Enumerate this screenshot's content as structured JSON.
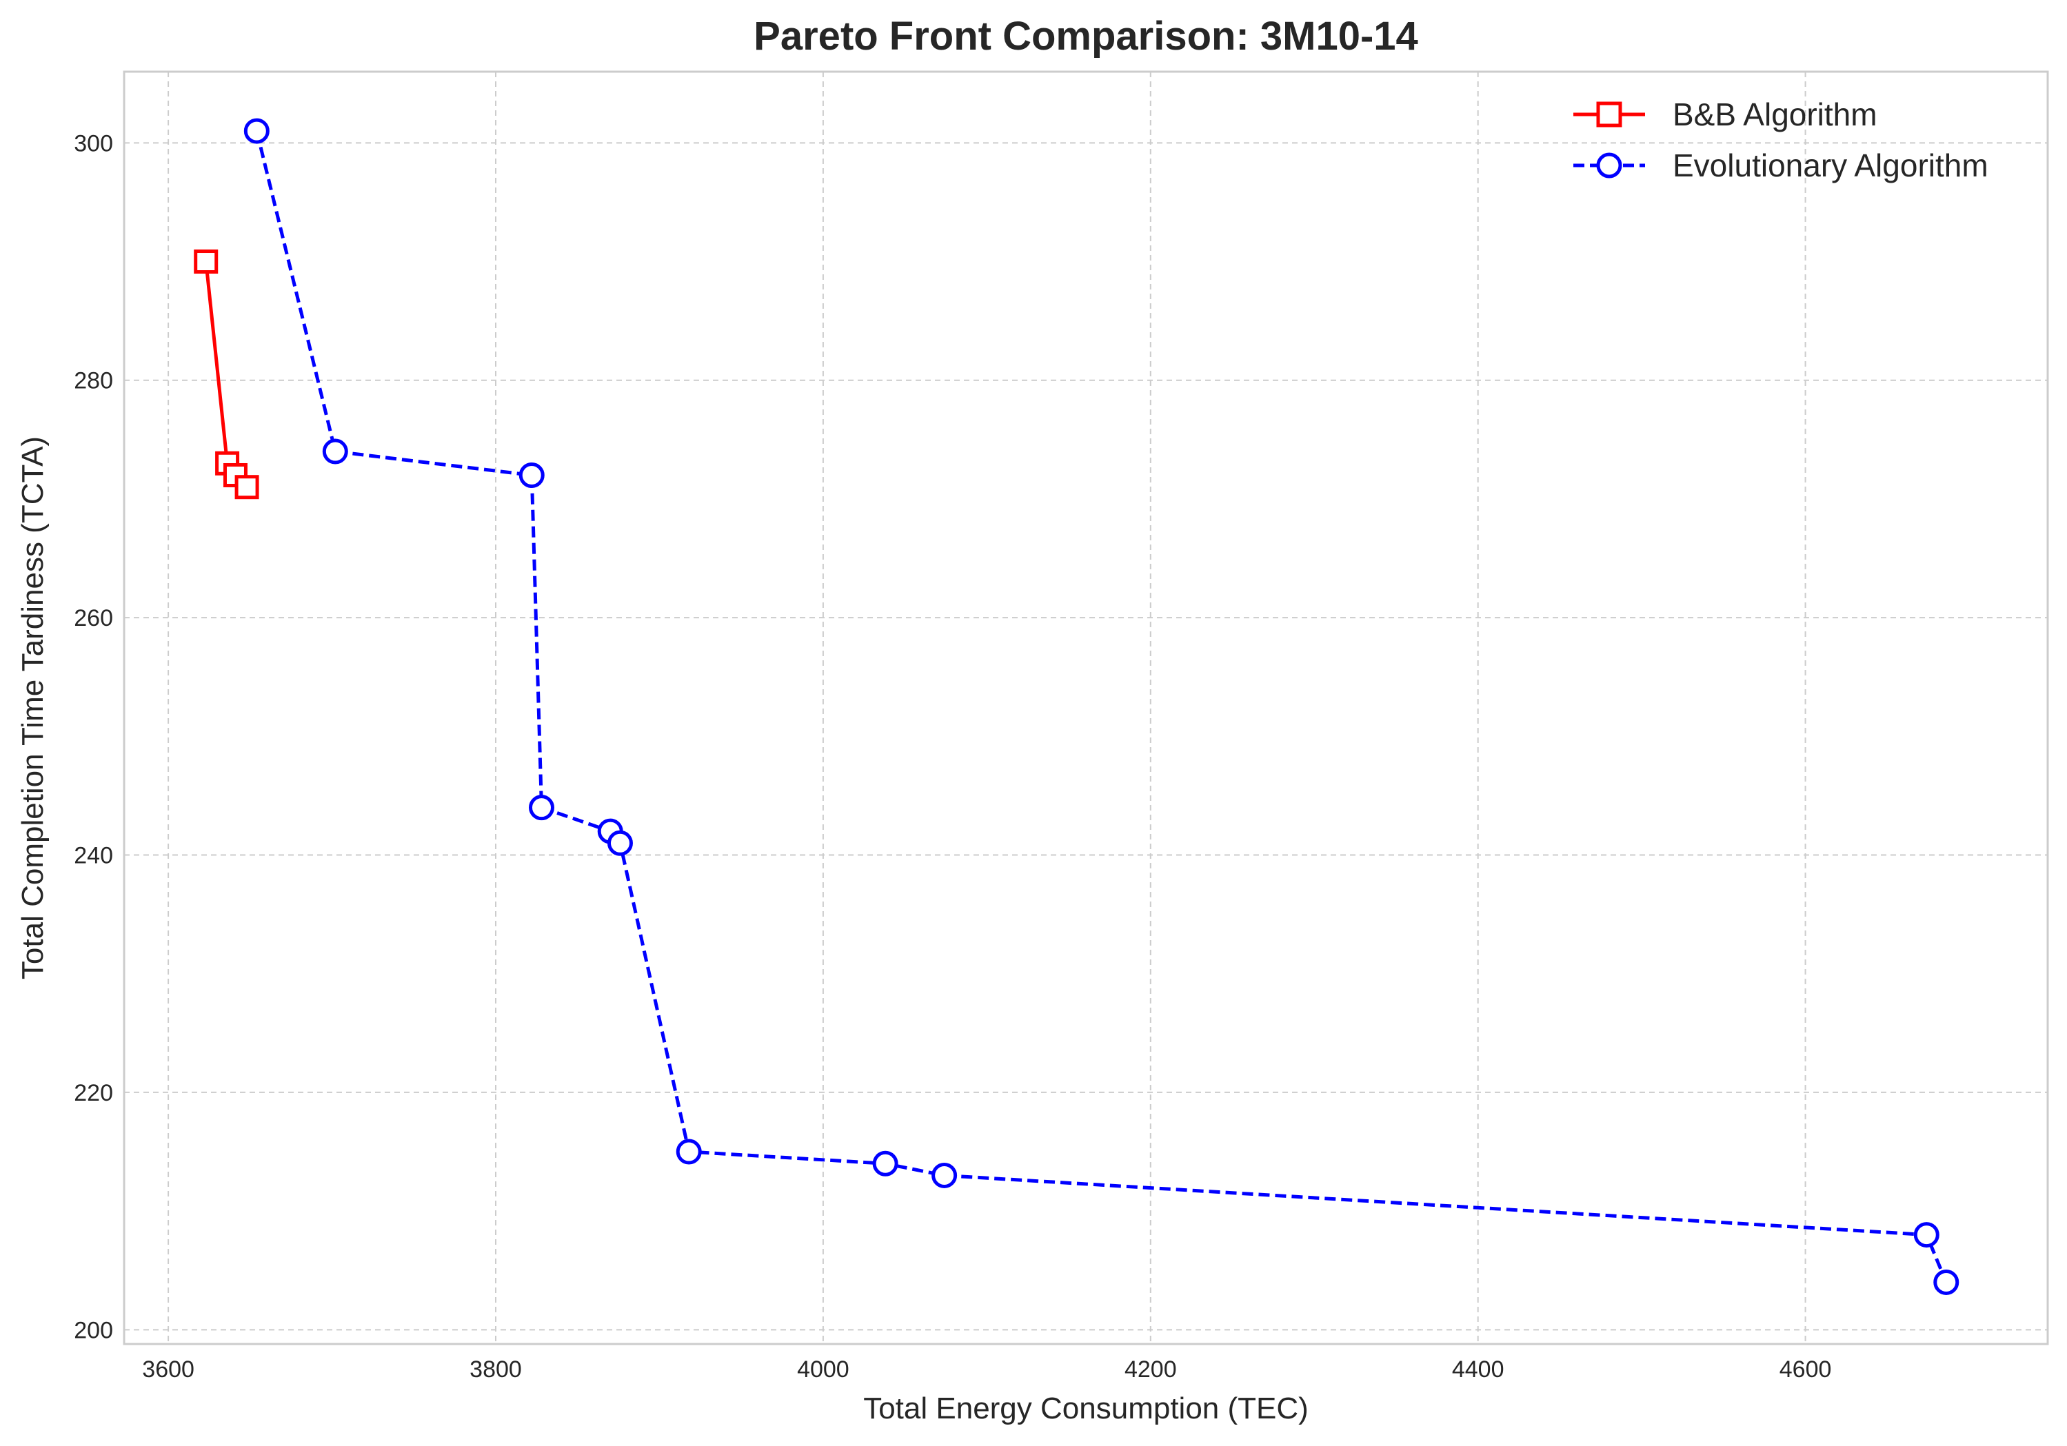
{
  "chart_data": {
    "type": "line",
    "title": "Pareto Front Comparison: 3M10-14",
    "xlabel": "Total Energy Consumption (TEC)",
    "ylabel": "Total Completion Time Tardiness (TCTA)",
    "xlim": [
      3573,
      4748
    ],
    "ylim": [
      198.8,
      306.0
    ],
    "xticks": [
      "3600",
      "3800",
      "4000",
      "4200",
      "4400",
      "4600"
    ],
    "yticks": [
      "200",
      "220",
      "240",
      "260",
      "280",
      "300"
    ],
    "grid": true,
    "legend_position": "top-right",
    "series": [
      {
        "name": "B&B Algorithm",
        "color": "#ff0000",
        "line_style": "solid",
        "marker": "square",
        "points": [
          {
            "x": 3623,
            "y": 290
          },
          {
            "x": 3636,
            "y": 273
          },
          {
            "x": 3641,
            "y": 272
          },
          {
            "x": 3648,
            "y": 271
          }
        ]
      },
      {
        "name": "Evolutionary Algorithm",
        "color": "#0000ff",
        "line_style": "dashed",
        "marker": "circle",
        "points": [
          {
            "x": 3654,
            "y": 301
          },
          {
            "x": 3702,
            "y": 274
          },
          {
            "x": 3822,
            "y": 272
          },
          {
            "x": 3828,
            "y": 244
          },
          {
            "x": 3870,
            "y": 242
          },
          {
            "x": 3876,
            "y": 241
          },
          {
            "x": 3918,
            "y": 215
          },
          {
            "x": 4038,
            "y": 214
          },
          {
            "x": 4074,
            "y": 213
          },
          {
            "x": 4674,
            "y": 208
          },
          {
            "x": 4686,
            "y": 204
          }
        ]
      }
    ]
  }
}
